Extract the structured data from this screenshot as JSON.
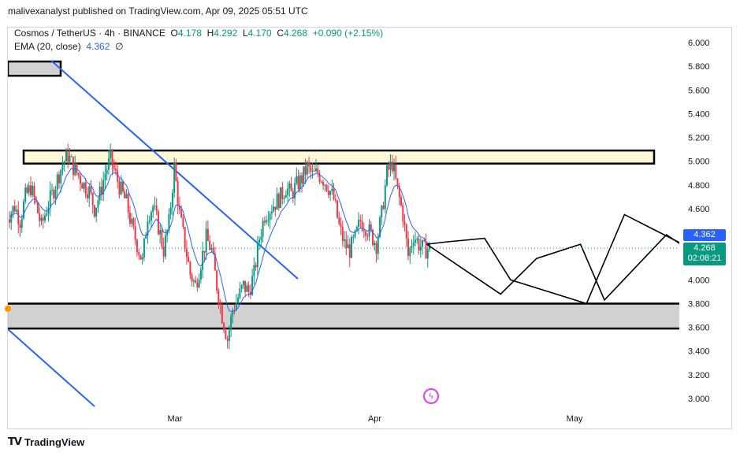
{
  "header": {
    "publisher_text": "malivexanalyst published on TradingView.com, Apr 09, 2025 05:51 UTC"
  },
  "legend": {
    "symbol": "Cosmos / TetherUS · 4h · BINANCE",
    "o_label": "O",
    "o": "4.178",
    "h_label": "H",
    "h": "4.292",
    "l_label": "L",
    "l": "4.170",
    "c_label": "C",
    "c": "4.268",
    "change": "+0.090 (+2.15%)",
    "ema_label": "EMA (20, close)",
    "ema_value": "4.362",
    "ema_extra": "∅"
  },
  "price_tags": {
    "ema": "4.362",
    "last": "4.268",
    "countdown": "02:08:21"
  },
  "footer": {
    "brand": "TradingView"
  },
  "colors": {
    "up": "#089981",
    "down": "#f23645",
    "ema": "#2962ff",
    "trendline": "#2962ff",
    "zone_fill_top": "#fff9d9",
    "zone_fill_bottom": "#d1d1d1"
  },
  "chart_data": {
    "type": "candlestick",
    "title": "Cosmos / TetherUS · 4h · BINANCE",
    "y_ticks": [
      "6.000",
      "5.800",
      "5.600",
      "5.400",
      "5.200",
      "5.000",
      "4.800",
      "4.600",
      "4.400",
      "4.200",
      "4.000",
      "3.800",
      "3.600",
      "3.400",
      "3.200",
      "3.000"
    ],
    "x_ticks": [
      "Mar",
      "Apr",
      "May"
    ],
    "ylim": [
      2.95,
      6.05
    ],
    "last_price": 4.268,
    "ema_last": 4.362,
    "close_path": [
      4.55,
      4.62,
      4.5,
      4.7,
      4.78,
      4.63,
      4.45,
      4.6,
      4.72,
      4.85,
      4.98,
      5.05,
      4.95,
      4.88,
      4.8,
      4.75,
      4.6,
      4.72,
      4.9,
      5.02,
      4.88,
      4.75,
      4.65,
      4.45,
      4.3,
      4.15,
      4.55,
      4.62,
      4.45,
      4.25,
      4.48,
      4.95,
      4.55,
      4.3,
      4.05,
      3.95,
      4.15,
      4.35,
      4.25,
      3.95,
      3.7,
      3.5,
      3.75,
      3.85,
      3.95,
      3.9,
      4.05,
      4.35,
      4.55,
      4.6,
      4.65,
      4.7,
      4.78,
      4.72,
      4.8,
      4.85,
      4.95,
      4.88,
      4.9,
      4.85,
      4.78,
      4.68,
      4.45,
      4.3,
      4.25,
      4.35,
      4.5,
      4.45,
      4.38,
      4.3,
      4.55,
      4.9,
      4.98,
      4.75,
      4.55,
      4.2,
      4.38,
      4.3,
      4.25,
      4.27
    ],
    "projections": [
      [
        [
          4.26,
          4.3
        ],
        [
          4.48,
          4.05
        ],
        [
          4.63,
          3.88
        ],
        [
          4.81,
          4.18
        ],
        [
          5.03,
          4.3
        ],
        [
          5.15,
          3.83
        ],
        [
          5.46,
          4.38
        ],
        [
          5.72,
          4.09
        ],
        [
          6.12,
          4.64
        ],
        [
          6.53,
          4.39
        ],
        [
          6.73,
          5.03
        ]
      ],
      [
        [
          4.26,
          4.3
        ],
        [
          4.36,
          4.32
        ],
        [
          4.55,
          4.35
        ],
        [
          4.68,
          4.0
        ],
        [
          5.06,
          3.8
        ],
        [
          5.25,
          4.55
        ],
        [
          5.6,
          4.25
        ],
        [
          5.97,
          4.62
        ],
        [
          6.18,
          4.08
        ],
        [
          6.7,
          4.4
        ],
        [
          7.36,
          5.0
        ]
      ]
    ],
    "zones": [
      {
        "from": 4.98,
        "to": 5.09,
        "label": ""
      },
      {
        "from": 3.59,
        "to": 3.8,
        "label": ""
      },
      {
        "from": 5.72,
        "to": 5.84,
        "label": ""
      }
    ]
  }
}
